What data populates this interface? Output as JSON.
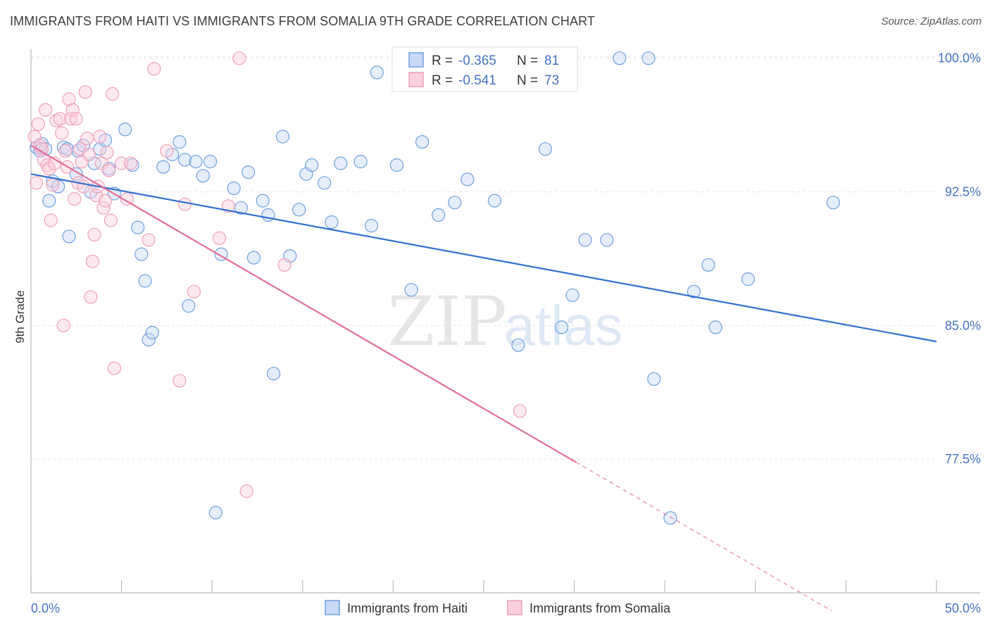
{
  "header": {
    "title": "IMMIGRANTS FROM HAITI VS IMMIGRANTS FROM SOMALIA 9TH GRADE CORRELATION CHART",
    "source": "Source: ZipAtlas.com"
  },
  "watermark": {
    "zip": "ZIP",
    "atlas": "atlas"
  },
  "chart_data": {
    "type": "scatter",
    "ylabel": "9th Grade",
    "xlim": [
      0,
      50
    ],
    "ylim": [
      70,
      100.5
    ],
    "x_tick_labels": [
      "0.0%",
      "50.0%"
    ],
    "y_ticks": [
      77.5,
      85.0,
      92.5,
      100.0
    ],
    "y_tick_labels": [
      "77.5%",
      "85.0%",
      "92.5%",
      "100.0%"
    ],
    "grid": true,
    "legend_placement": "top-center",
    "series": [
      {
        "name": "Immigrants from Haiti",
        "color": "#6f9fe0",
        "line_color": "#3370d0",
        "r_label": "R =",
        "r_value": "-0.365",
        "n_label": "N =",
        "n_value": "81",
        "trend": {
          "x0": 0,
          "y0": 93.5,
          "x1": 50,
          "y1": 84.1,
          "solid_to": 50
        },
        "points": [
          [
            0.3,
            95.0
          ],
          [
            0.5,
            94.8
          ],
          [
            0.6,
            95.2
          ],
          [
            0.8,
            94.9
          ],
          [
            1.0,
            92.0
          ],
          [
            1.2,
            93.1
          ],
          [
            1.5,
            92.8
          ],
          [
            1.8,
            95.0
          ],
          [
            2.0,
            94.9
          ],
          [
            2.1,
            90.0
          ],
          [
            2.5,
            93.5
          ],
          [
            2.6,
            94.8
          ],
          [
            2.9,
            95.1
          ],
          [
            3.3,
            92.5
          ],
          [
            3.5,
            94.1
          ],
          [
            3.8,
            94.9
          ],
          [
            4.1,
            95.4
          ],
          [
            4.3,
            93.8
          ],
          [
            4.6,
            92.4
          ],
          [
            5.2,
            96.0
          ],
          [
            5.6,
            94.0
          ],
          [
            5.9,
            90.5
          ],
          [
            6.1,
            89.0
          ],
          [
            6.3,
            87.5
          ],
          [
            6.5,
            84.2
          ],
          [
            6.7,
            84.6
          ],
          [
            7.3,
            93.9
          ],
          [
            7.8,
            94.6
          ],
          [
            8.2,
            95.3
          ],
          [
            8.5,
            94.3
          ],
          [
            8.7,
            86.1
          ],
          [
            9.1,
            94.2
          ],
          [
            9.5,
            93.4
          ],
          [
            9.9,
            94.2
          ],
          [
            10.2,
            74.5
          ],
          [
            10.5,
            89.0
          ],
          [
            11.2,
            92.7
          ],
          [
            11.6,
            91.6
          ],
          [
            12.0,
            93.6
          ],
          [
            12.3,
            88.8
          ],
          [
            12.8,
            92.0
          ],
          [
            13.1,
            91.2
          ],
          [
            13.4,
            82.3
          ],
          [
            13.9,
            95.6
          ],
          [
            14.3,
            88.9
          ],
          [
            14.8,
            91.5
          ],
          [
            15.2,
            93.5
          ],
          [
            15.5,
            94.0
          ],
          [
            16.2,
            93.0
          ],
          [
            16.6,
            90.8
          ],
          [
            17.1,
            94.1
          ],
          [
            18.2,
            94.2
          ],
          [
            18.8,
            90.6
          ],
          [
            19.1,
            99.2
          ],
          [
            20.2,
            94.0
          ],
          [
            21.0,
            87.0
          ],
          [
            21.6,
            95.3
          ],
          [
            22.5,
            91.2
          ],
          [
            23.4,
            91.9
          ],
          [
            24.1,
            93.2
          ],
          [
            25.6,
            92.0
          ],
          [
            26.9,
            83.9
          ],
          [
            28.4,
            94.9
          ],
          [
            29.3,
            84.9
          ],
          [
            29.9,
            86.7
          ],
          [
            30.6,
            89.8
          ],
          [
            31.8,
            89.8
          ],
          [
            34.4,
            82.0
          ],
          [
            36.6,
            86.9
          ],
          [
            37.4,
            88.4
          ],
          [
            37.8,
            84.9
          ],
          [
            39.6,
            87.6
          ],
          [
            32.5,
            100.0
          ],
          [
            34.1,
            100.0
          ],
          [
            35.3,
            74.2
          ],
          [
            44.3,
            91.9
          ]
        ]
      },
      {
        "name": "Immigrants from Somalia",
        "color": "#f0a0ba",
        "line_color": "#e06e98",
        "r_label": "R =",
        "r_value": "-0.541",
        "n_label": "N =",
        "n_value": "73",
        "trend": {
          "x0": 0,
          "y0": 95.1,
          "x1": 44.2,
          "y1": 69.0,
          "solid_to": 30.1
        },
        "points": [
          [
            0.2,
            95.6
          ],
          [
            0.3,
            93.0
          ],
          [
            0.4,
            96.3
          ],
          [
            0.5,
            95.1
          ],
          [
            0.6,
            94.9
          ],
          [
            0.7,
            94.3
          ],
          [
            0.8,
            97.1
          ],
          [
            0.9,
            94.0
          ],
          [
            1.0,
            93.8
          ],
          [
            1.1,
            90.9
          ],
          [
            1.2,
            92.9
          ],
          [
            1.3,
            94.1
          ],
          [
            1.4,
            96.5
          ],
          [
            1.6,
            96.6
          ],
          [
            1.7,
            95.8
          ],
          [
            1.8,
            85.0
          ],
          [
            1.9,
            94.8
          ],
          [
            2.0,
            93.9
          ],
          [
            2.1,
            97.7
          ],
          [
            2.2,
            96.6
          ],
          [
            2.3,
            97.1
          ],
          [
            2.4,
            92.1
          ],
          [
            2.5,
            96.6
          ],
          [
            2.6,
            93.0
          ],
          [
            2.7,
            94.9
          ],
          [
            2.8,
            94.2
          ],
          [
            2.9,
            92.8
          ],
          [
            3.0,
            98.1
          ],
          [
            3.1,
            95.5
          ],
          [
            3.2,
            94.6
          ],
          [
            3.3,
            86.6
          ],
          [
            3.4,
            88.6
          ],
          [
            3.5,
            90.1
          ],
          [
            3.6,
            92.3
          ],
          [
            3.7,
            92.8
          ],
          [
            3.8,
            95.6
          ],
          [
            3.9,
            94.1
          ],
          [
            4.0,
            91.6
          ],
          [
            4.1,
            92.0
          ],
          [
            4.2,
            94.7
          ],
          [
            4.3,
            93.7
          ],
          [
            4.4,
            90.9
          ],
          [
            4.5,
            98.0
          ],
          [
            4.6,
            82.6
          ],
          [
            5.0,
            94.1
          ],
          [
            5.3,
            92.1
          ],
          [
            5.5,
            94.1
          ],
          [
            6.5,
            89.8
          ],
          [
            6.8,
            99.4
          ],
          [
            7.5,
            94.8
          ],
          [
            8.2,
            81.9
          ],
          [
            8.5,
            91.8
          ],
          [
            9.0,
            86.9
          ],
          [
            10.4,
            89.9
          ],
          [
            10.9,
            91.7
          ],
          [
            11.5,
            100.0
          ],
          [
            11.9,
            75.7
          ],
          [
            14.0,
            88.4
          ],
          [
            27.0,
            80.2
          ]
        ]
      }
    ]
  }
}
